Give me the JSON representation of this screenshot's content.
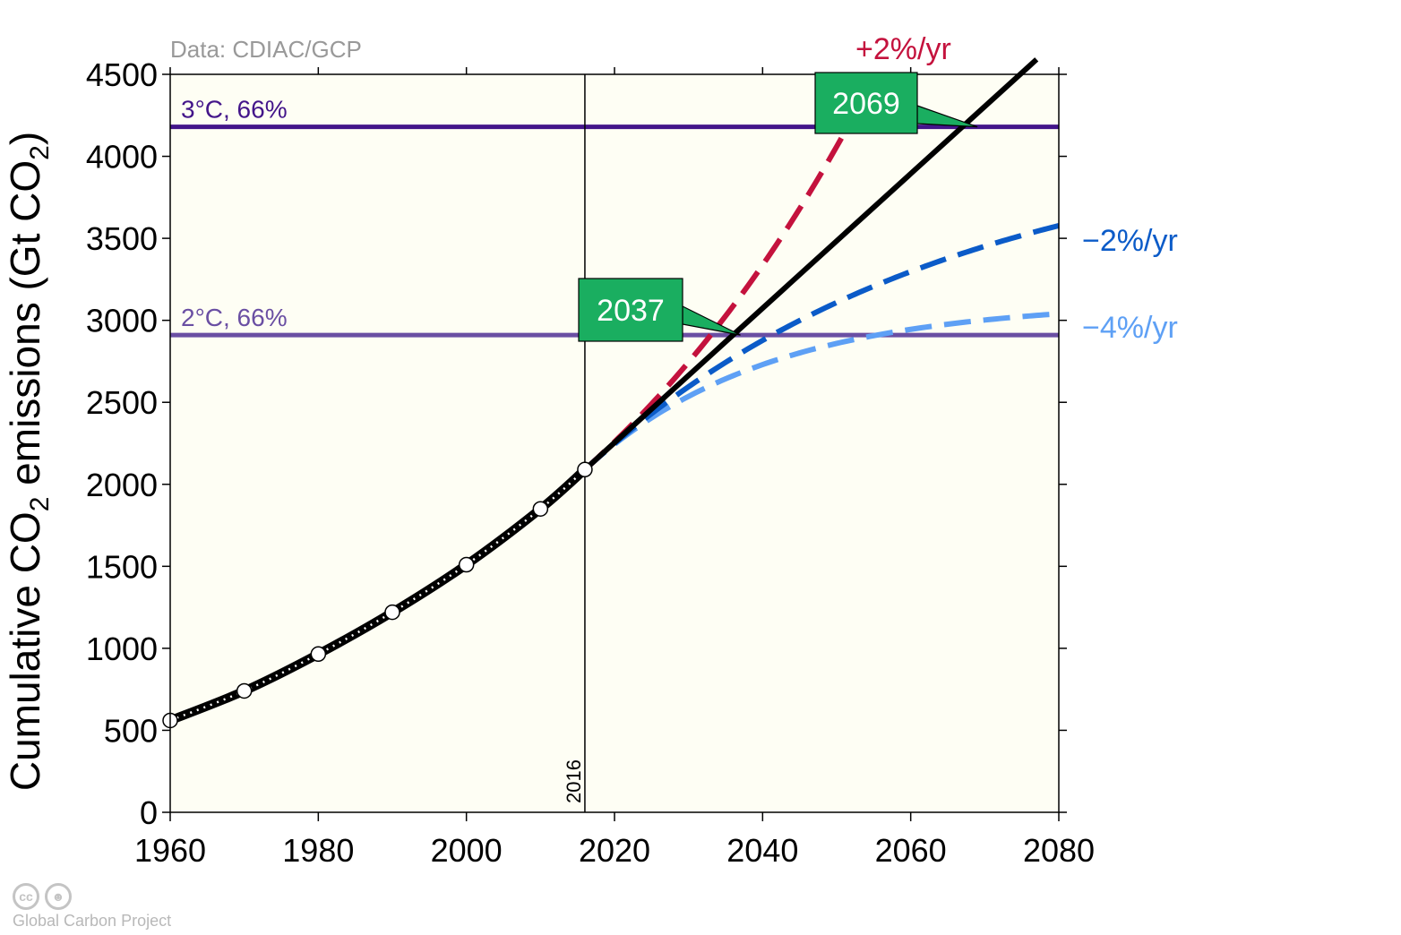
{
  "chart_data": {
    "type": "line",
    "source_note": "Data: CDIAC/GCP",
    "ylabel_parts": [
      "Cumulative CO",
      "2",
      " emissions (Gt CO",
      "2",
      ")"
    ],
    "xlim": [
      1960,
      2080
    ],
    "ylim": [
      0,
      4500
    ],
    "x_ticks": [
      "1960",
      "1980",
      "2000",
      "2020",
      "2040",
      "2060",
      "2080"
    ],
    "y_ticks": [
      "0",
      "500",
      "1000",
      "1500",
      "2000",
      "2500",
      "3000",
      "3500",
      "4000",
      "4500"
    ],
    "historical": {
      "points": [
        [
          1960,
          560
        ],
        [
          1970,
          740
        ],
        [
          1980,
          965
        ],
        [
          1990,
          1220
        ],
        [
          2000,
          1510
        ],
        [
          2010,
          1850
        ],
        [
          2016,
          2090
        ]
      ]
    },
    "reference_year": {
      "x": 2016,
      "label": "2016"
    },
    "thresholds": [
      {
        "label": "3°C, 66%",
        "y": 4180,
        "color": "#43158a"
      },
      {
        "label": "2°C, 66%",
        "y": 2910,
        "color": "#6a4fa3"
      }
    ],
    "series": [
      {
        "name": "",
        "label": "+2%/yr",
        "color": "#c4123d",
        "dashed": true,
        "growth": 0.02,
        "end_year": 2051.5
      },
      {
        "name": "",
        "label": "",
        "color": "#000000",
        "dashed": false,
        "growth": 0,
        "end_year": 2077
      },
      {
        "name": "",
        "label": "−2%/yr",
        "color": "#0b5bc8",
        "dashed": true,
        "growth": -0.02,
        "end_year": 2080
      },
      {
        "name": "",
        "label": "−4%/yr",
        "color": "#5ea0f5",
        "dashed": true,
        "growth": -0.04,
        "end_year": 2080
      }
    ],
    "base_annual_emissions": 41,
    "annotations": [
      {
        "text": "2069",
        "x": 2069,
        "y": 4180
      },
      {
        "text": "2037",
        "x": 2037,
        "y": 2910
      }
    ],
    "colors": {
      "plot_bg": "#fefef4",
      "box": "#1aae60"
    }
  },
  "credit": {
    "cc": "cc",
    "text": "Global Carbon Project"
  }
}
